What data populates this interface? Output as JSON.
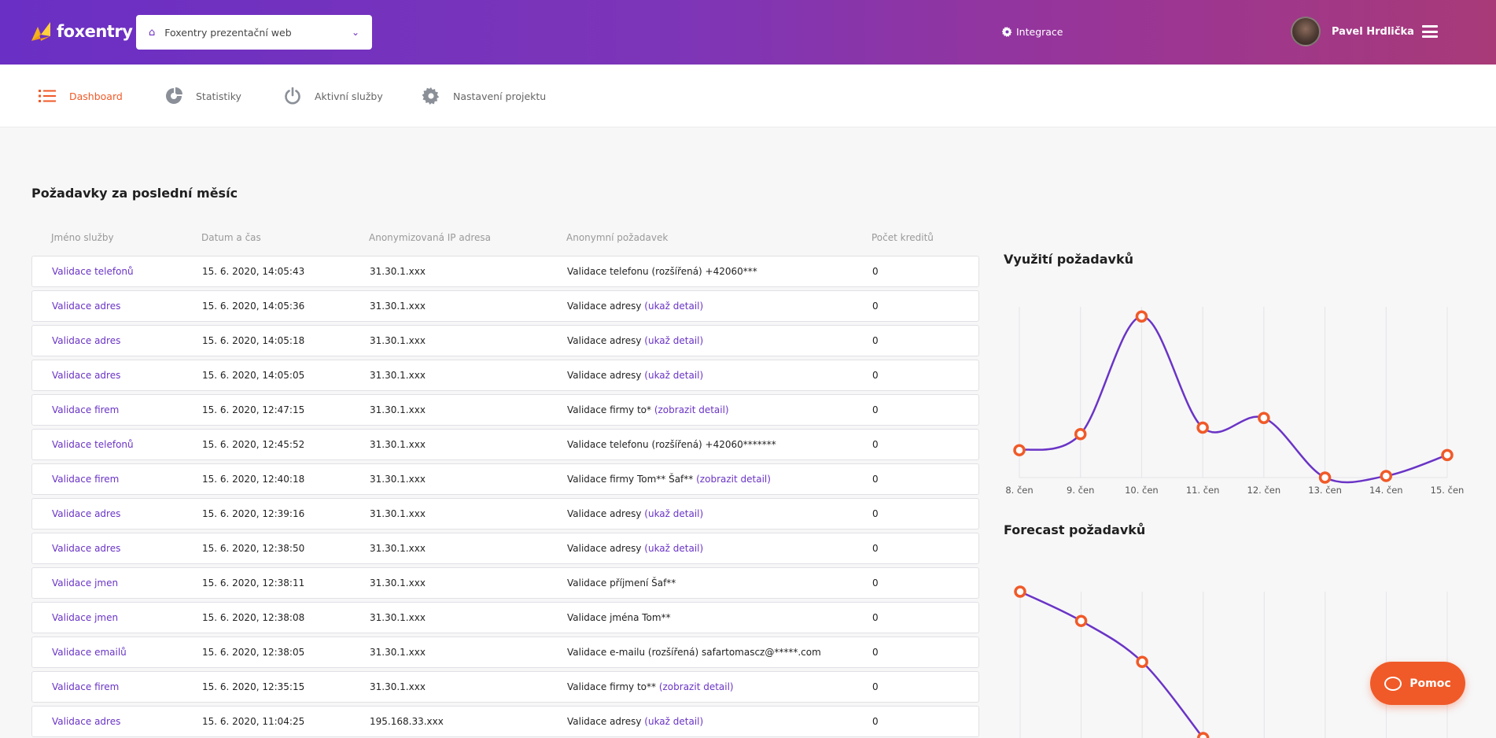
{
  "header": {
    "logo_text": "foxentry",
    "project_select": "Foxentry prezentační web",
    "integrace_label": "Integrace",
    "user_name": "Pavel Hrdlička"
  },
  "nav": {
    "items": [
      {
        "label": "Dashboard",
        "icon": "list-icon",
        "active": true
      },
      {
        "label": "Statistiky",
        "icon": "pie-chart-icon",
        "active": false
      },
      {
        "label": "Aktivní služby",
        "icon": "power-icon",
        "active": false
      },
      {
        "label": "Nastavení projektu",
        "icon": "gear-icon",
        "active": false
      }
    ]
  },
  "requests": {
    "title": "Požadavky za poslední měsíc",
    "columns": [
      "Jméno služby",
      "Datum a čas",
      "Anonymizovaná IP adresa",
      "Anonymní požadavek",
      "Počet kreditů"
    ],
    "rows": [
      {
        "service": "Validace telefonů",
        "datetime": "15. 6. 2020, 14:05:43",
        "ip": "31.30.1.xxx",
        "request": "Validace telefonu (rozšířená) +42060***",
        "link": "",
        "credits": "0"
      },
      {
        "service": "Validace adres",
        "datetime": "15. 6. 2020, 14:05:36",
        "ip": "31.30.1.xxx",
        "request": "Validace adresy",
        "link": "(ukaž detail)",
        "credits": "0"
      },
      {
        "service": "Validace adres",
        "datetime": "15. 6. 2020, 14:05:18",
        "ip": "31.30.1.xxx",
        "request": "Validace adresy",
        "link": "(ukaž detail)",
        "credits": "0"
      },
      {
        "service": "Validace adres",
        "datetime": "15. 6. 2020, 14:05:05",
        "ip": "31.30.1.xxx",
        "request": "Validace adresy",
        "link": "(ukaž detail)",
        "credits": "0"
      },
      {
        "service": "Validace firem",
        "datetime": "15. 6. 2020, 12:47:15",
        "ip": "31.30.1.xxx",
        "request": "Validace firmy to*",
        "link": "(zobrazit detail)",
        "credits": "0"
      },
      {
        "service": "Validace telefonů",
        "datetime": "15. 6. 2020, 12:45:52",
        "ip": "31.30.1.xxx",
        "request": "Validace telefonu (rozšířená) +42060*******",
        "link": "",
        "credits": "0"
      },
      {
        "service": "Validace firem",
        "datetime": "15. 6. 2020, 12:40:18",
        "ip": "31.30.1.xxx",
        "request": "Validace firmy Tom** Šaf**",
        "link": "(zobrazit detail)",
        "credits": "0"
      },
      {
        "service": "Validace adres",
        "datetime": "15. 6. 2020, 12:39:16",
        "ip": "31.30.1.xxx",
        "request": "Validace adresy",
        "link": "(ukaž detail)",
        "credits": "0"
      },
      {
        "service": "Validace adres",
        "datetime": "15. 6. 2020, 12:38:50",
        "ip": "31.30.1.xxx",
        "request": "Validace adresy",
        "link": "(ukaž detail)",
        "credits": "0"
      },
      {
        "service": "Validace jmen",
        "datetime": "15. 6. 2020, 12:38:11",
        "ip": "31.30.1.xxx",
        "request": "Validace příjmení Šaf**",
        "link": "",
        "credits": "0"
      },
      {
        "service": "Validace jmen",
        "datetime": "15. 6. 2020, 12:38:08",
        "ip": "31.30.1.xxx",
        "request": "Validace jména Tom**",
        "link": "",
        "credits": "0"
      },
      {
        "service": "Validace emailů",
        "datetime": "15. 6. 2020, 12:38:05",
        "ip": "31.30.1.xxx",
        "request": "Validace e-mailu (rozšířená) safartomascz@*****.com",
        "link": "",
        "credits": "0"
      },
      {
        "service": "Validace firem",
        "datetime": "15. 6. 2020, 12:35:15",
        "ip": "31.30.1.xxx",
        "request": "Validace firmy to**",
        "link": "(zobrazit detail)",
        "credits": "0"
      },
      {
        "service": "Validace adres",
        "datetime": "15. 6. 2020, 11:04:25",
        "ip": "195.168.33.xxx",
        "request": "Validace adresy",
        "link": "(ukaž detail)",
        "credits": "0"
      }
    ]
  },
  "chart_data": [
    {
      "type": "line",
      "title": "Využití požadavků",
      "categories": [
        "8. čen",
        "9. čen",
        "10. čen",
        "11. čen",
        "12. čen",
        "13. čen",
        "14. čen",
        "15. čen"
      ],
      "values": [
        17,
        27,
        100,
        31,
        37,
        0,
        1,
        14
      ],
      "ylim": [
        0,
        106
      ],
      "grid": "vertical",
      "line_color": "#6a34c6",
      "marker_color": "#f05a28"
    },
    {
      "type": "line",
      "title": "Forecast požadavků",
      "values": [
        100,
        80,
        52,
        0
      ],
      "ylim": [
        0,
        100
      ],
      "grid": "vertical",
      "line_color": "#6a34c6",
      "marker_color": "#f05a28"
    }
  ],
  "help": {
    "label": "Pomoc"
  }
}
